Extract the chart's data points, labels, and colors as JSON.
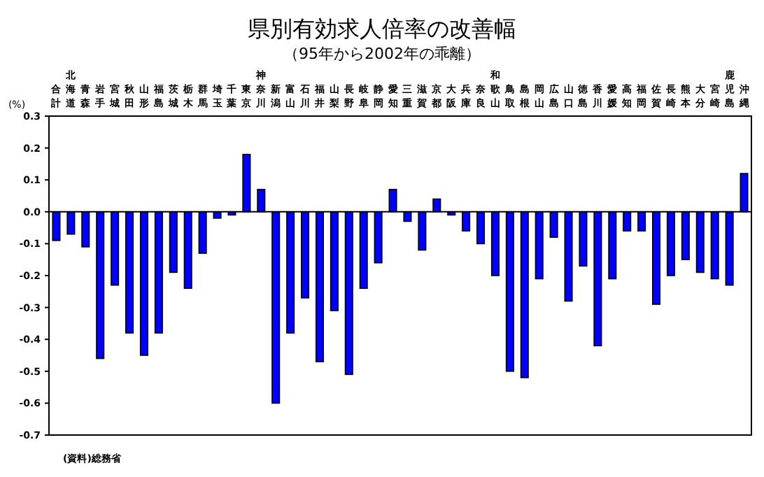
{
  "chart_data": {
    "type": "bar",
    "title": "県別有効求人倍率の改善幅",
    "subtitle": "（95年から2002年の乖離）",
    "ylabel": "(%)",
    "annotations": [
      "(資料)総務省"
    ],
    "categories": [
      "合計",
      "北海道",
      "青森",
      "岩手",
      "宮城",
      "秋田",
      "山形",
      "福島",
      "茨城",
      "栃木",
      "群馬",
      "埼玉",
      "千葉",
      "東京",
      "神奈川",
      "新潟",
      "富山",
      "石川",
      "福井",
      "山梨",
      "長野",
      "岐阜",
      "静岡",
      "愛知",
      "三重",
      "滋賀",
      "京都",
      "大阪",
      "兵庫",
      "奈良",
      "和歌山",
      "鳥取",
      "島根",
      "岡山",
      "広島",
      "山口",
      "徳島",
      "香川",
      "愛媛",
      "高知",
      "福岡",
      "佐賀",
      "長崎",
      "熊本",
      "大分",
      "宮崎",
      "鹿児島",
      "沖縄"
    ],
    "values": [
      -0.09,
      -0.07,
      -0.11,
      -0.46,
      -0.23,
      -0.38,
      -0.45,
      -0.38,
      -0.19,
      -0.24,
      -0.13,
      -0.02,
      -0.01,
      0.18,
      0.07,
      -0.6,
      -0.38,
      -0.27,
      -0.47,
      -0.31,
      -0.51,
      -0.24,
      -0.16,
      0.07,
      -0.03,
      -0.12,
      0.04,
      -0.01,
      -0.06,
      -0.1,
      -0.2,
      -0.5,
      -0.52,
      -0.21,
      -0.08,
      -0.28,
      -0.17,
      -0.42,
      -0.21,
      -0.06,
      -0.06,
      -0.29,
      -0.2,
      -0.15,
      -0.19,
      -0.21,
      -0.23,
      0.12
    ],
    "color": "#0000ff",
    "ylim": [
      -0.7,
      0.3
    ],
    "yticks": [
      0.3,
      0.2,
      0.1,
      {
        "value": 0,
        "label": "0.0"
      },
      -0.1,
      -0.2,
      -0.3,
      -0.4,
      -0.5,
      -0.6,
      -0.7
    ]
  }
}
